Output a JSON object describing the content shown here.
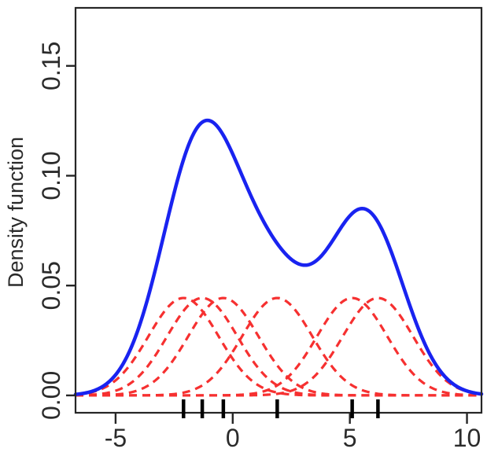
{
  "chart_data": {
    "type": "line",
    "title": "",
    "xlabel": "",
    "ylabel": "Density function",
    "x_tick_values": [
      -5,
      0,
      5,
      10
    ],
    "x_tick_labels": [
      "-5",
      "0",
      "5",
      "10"
    ],
    "y_tick_values": [
      0,
      0.05,
      0.1,
      0.15
    ],
    "y_tick_labels": [
      "0.00",
      "0.05",
      "0.10",
      "0.15"
    ],
    "xlim": [
      -6.71,
      10.62
    ],
    "ylim": [
      -0.0079,
      0.1764
    ],
    "grid": false,
    "legend": false,
    "kernel": "gaussian",
    "bandwidth": 1.5,
    "n": 6,
    "sample_points": [
      -2.1,
      -1.3,
      -0.4,
      1.9,
      5.1,
      6.2
    ],
    "kernel_peak_height": 0.0443,
    "kde_peaks": [
      {
        "x": -1.1,
        "y": 0.125
      },
      {
        "x": 5.6,
        "y": 0.085
      }
    ],
    "series": [
      {
        "name": "kernel-density-estimate",
        "style": "solid",
        "color": "#1923f0"
      },
      {
        "name": "individual-gaussian-kernels",
        "style": "dashed",
        "color": "#f63030"
      }
    ],
    "rug": {
      "color": "#000000",
      "positions": [
        -2.1,
        -1.3,
        -0.4,
        1.9,
        5.1,
        6.2
      ]
    },
    "axis_color": "#262626",
    "text_color": "#2b2b2b",
    "background": "#ffffff"
  }
}
